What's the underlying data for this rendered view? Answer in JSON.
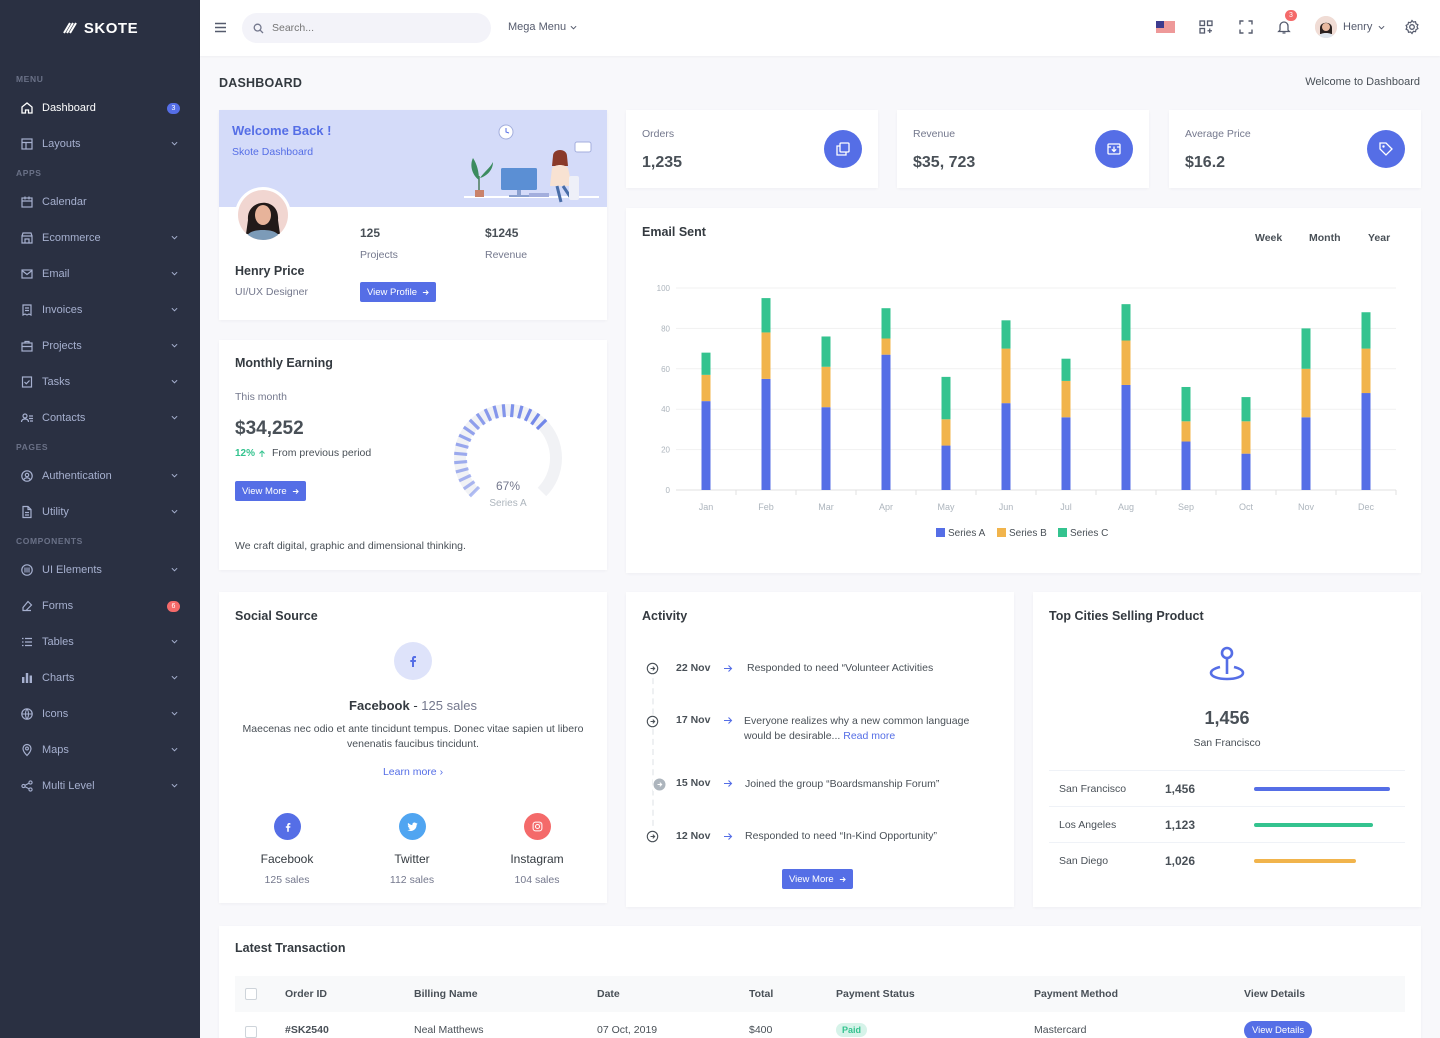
{
  "brand": "SKOTE",
  "sidebar": {
    "sections": [
      "Menu",
      "Apps",
      "Pages",
      "Components"
    ],
    "items": [
      {
        "label": "Dashboard",
        "badge": "3"
      },
      {
        "label": "Layouts"
      },
      {
        "label": "Calendar"
      },
      {
        "label": "Ecommerce"
      },
      {
        "label": "Email"
      },
      {
        "label": "Invoices"
      },
      {
        "label": "Projects"
      },
      {
        "label": "Tasks"
      },
      {
        "label": "Contacts"
      },
      {
        "label": "Authentication"
      },
      {
        "label": "Utility"
      },
      {
        "label": "UI Elements"
      },
      {
        "label": "Forms",
        "badge": "6"
      },
      {
        "label": "Tables"
      },
      {
        "label": "Charts"
      },
      {
        "label": "Icons"
      },
      {
        "label": "Maps"
      },
      {
        "label": "Multi Level"
      }
    ]
  },
  "topbar": {
    "search_placeholder": "Search...",
    "mega_menu": "Mega Menu",
    "notif_count": "3",
    "user_name": "Henry"
  },
  "page": {
    "title": "DASHBOARD",
    "breadcrumb": "Welcome to Dashboard"
  },
  "welcome": {
    "heading": "Welcome Back !",
    "sub": "Skote Dashboard",
    "name": "Henry Price",
    "role": "UI/UX Designer",
    "projects_value": "125",
    "projects_label": "Projects",
    "revenue_value": "$1245",
    "revenue_label": "Revenue",
    "button": "View Profile"
  },
  "stats": [
    {
      "label": "Orders",
      "value": "1,235"
    },
    {
      "label": "Revenue",
      "value": "$35, 723"
    },
    {
      "label": "Average Price",
      "value": "$16.2"
    }
  ],
  "monthly": {
    "title": "Monthly Earning",
    "period": "This month",
    "amount": "$34,252",
    "pct": "12%",
    "from": "From previous period",
    "button": "View More",
    "gauge_value": "67%",
    "gauge_label": "Series A",
    "gauge_fraction": 0.67,
    "footer": "We craft digital, graphic and dimensional thinking."
  },
  "email_chart": {
    "title": "Email Sent",
    "ranges": [
      "Week",
      "Month",
      "Year"
    ]
  },
  "chart_data": {
    "type": "bar",
    "stacked": true,
    "categories": [
      "Jan",
      "Feb",
      "Mar",
      "Apr",
      "May",
      "Jun",
      "Jul",
      "Aug",
      "Sep",
      "Oct",
      "Nov",
      "Dec"
    ],
    "series": [
      {
        "name": "Series A",
        "color": "#556ee6",
        "values": [
          44,
          55,
          41,
          67,
          22,
          43,
          36,
          52,
          24,
          18,
          36,
          48
        ]
      },
      {
        "name": "Series B",
        "color": "#f1b44c",
        "values": [
          13,
          23,
          20,
          8,
          13,
          27,
          18,
          22,
          10,
          16,
          24,
          22
        ]
      },
      {
        "name": "Series C",
        "color": "#34c38f",
        "values": [
          11,
          17,
          15,
          15,
          21,
          14,
          11,
          18,
          17,
          12,
          20,
          18
        ]
      }
    ],
    "ylim": [
      0,
      100
    ],
    "yticks": [
      0,
      20,
      40,
      60,
      80,
      100
    ],
    "legend": "bottom-center",
    "grid": true
  },
  "social": {
    "title": "Social Source",
    "headline_name": "Facebook",
    "headline_sales": "125 sales",
    "text": "Maecenas nec odio et ante tincidunt tempus. Donec vitae sapien ut libero venenatis faucibus tincidunt.",
    "learn_more": "Learn more",
    "items": [
      {
        "name": "Facebook",
        "sales": "125 sales",
        "color": "#556ee6",
        "icon": "facebook-icon"
      },
      {
        "name": "Twitter",
        "sales": "112 sales",
        "color": "#50a5f1",
        "icon": "twitter-icon"
      },
      {
        "name": "Instagram",
        "sales": "104 sales",
        "color": "#f46a6a",
        "icon": "instagram-icon"
      }
    ]
  },
  "activity": {
    "title": "Activity",
    "items": [
      {
        "date": "22 Nov",
        "text": "Responded to need “Volunteer Activities"
      },
      {
        "date": "17 Nov",
        "text": "Everyone realizes why a new common language would be desirable...",
        "link": "Read more"
      },
      {
        "date": "15 Nov",
        "text": "Joined the group “Boardsmanship Forum”"
      },
      {
        "date": "12 Nov",
        "text": "Responded to need “In-Kind Opportunity”"
      }
    ],
    "button": "View More"
  },
  "cities": {
    "title": "Top Cities Selling Product",
    "value": "1,456",
    "city": "San Francisco",
    "rows": [
      {
        "name": "San Francisco",
        "value": "1,456",
        "progress": 0.94,
        "color": "#556ee6"
      },
      {
        "name": "Los Angeles",
        "value": "1,123",
        "progress": 0.82,
        "color": "#34c38f"
      },
      {
        "name": "San Diego",
        "value": "1,026",
        "progress": 0.7,
        "color": "#f1b44c"
      }
    ]
  },
  "transactions": {
    "title": "Latest Transaction",
    "columns": [
      "Order ID",
      "Billing Name",
      "Date",
      "Total",
      "Payment Status",
      "Payment Method",
      "View Details"
    ],
    "rows": [
      {
        "id": "#SK2540",
        "name": "Neal Matthews",
        "date": "07 Oct, 2019",
        "total": "$400",
        "status": "Paid",
        "method": "Mastercard",
        "action": "View Details"
      }
    ]
  }
}
